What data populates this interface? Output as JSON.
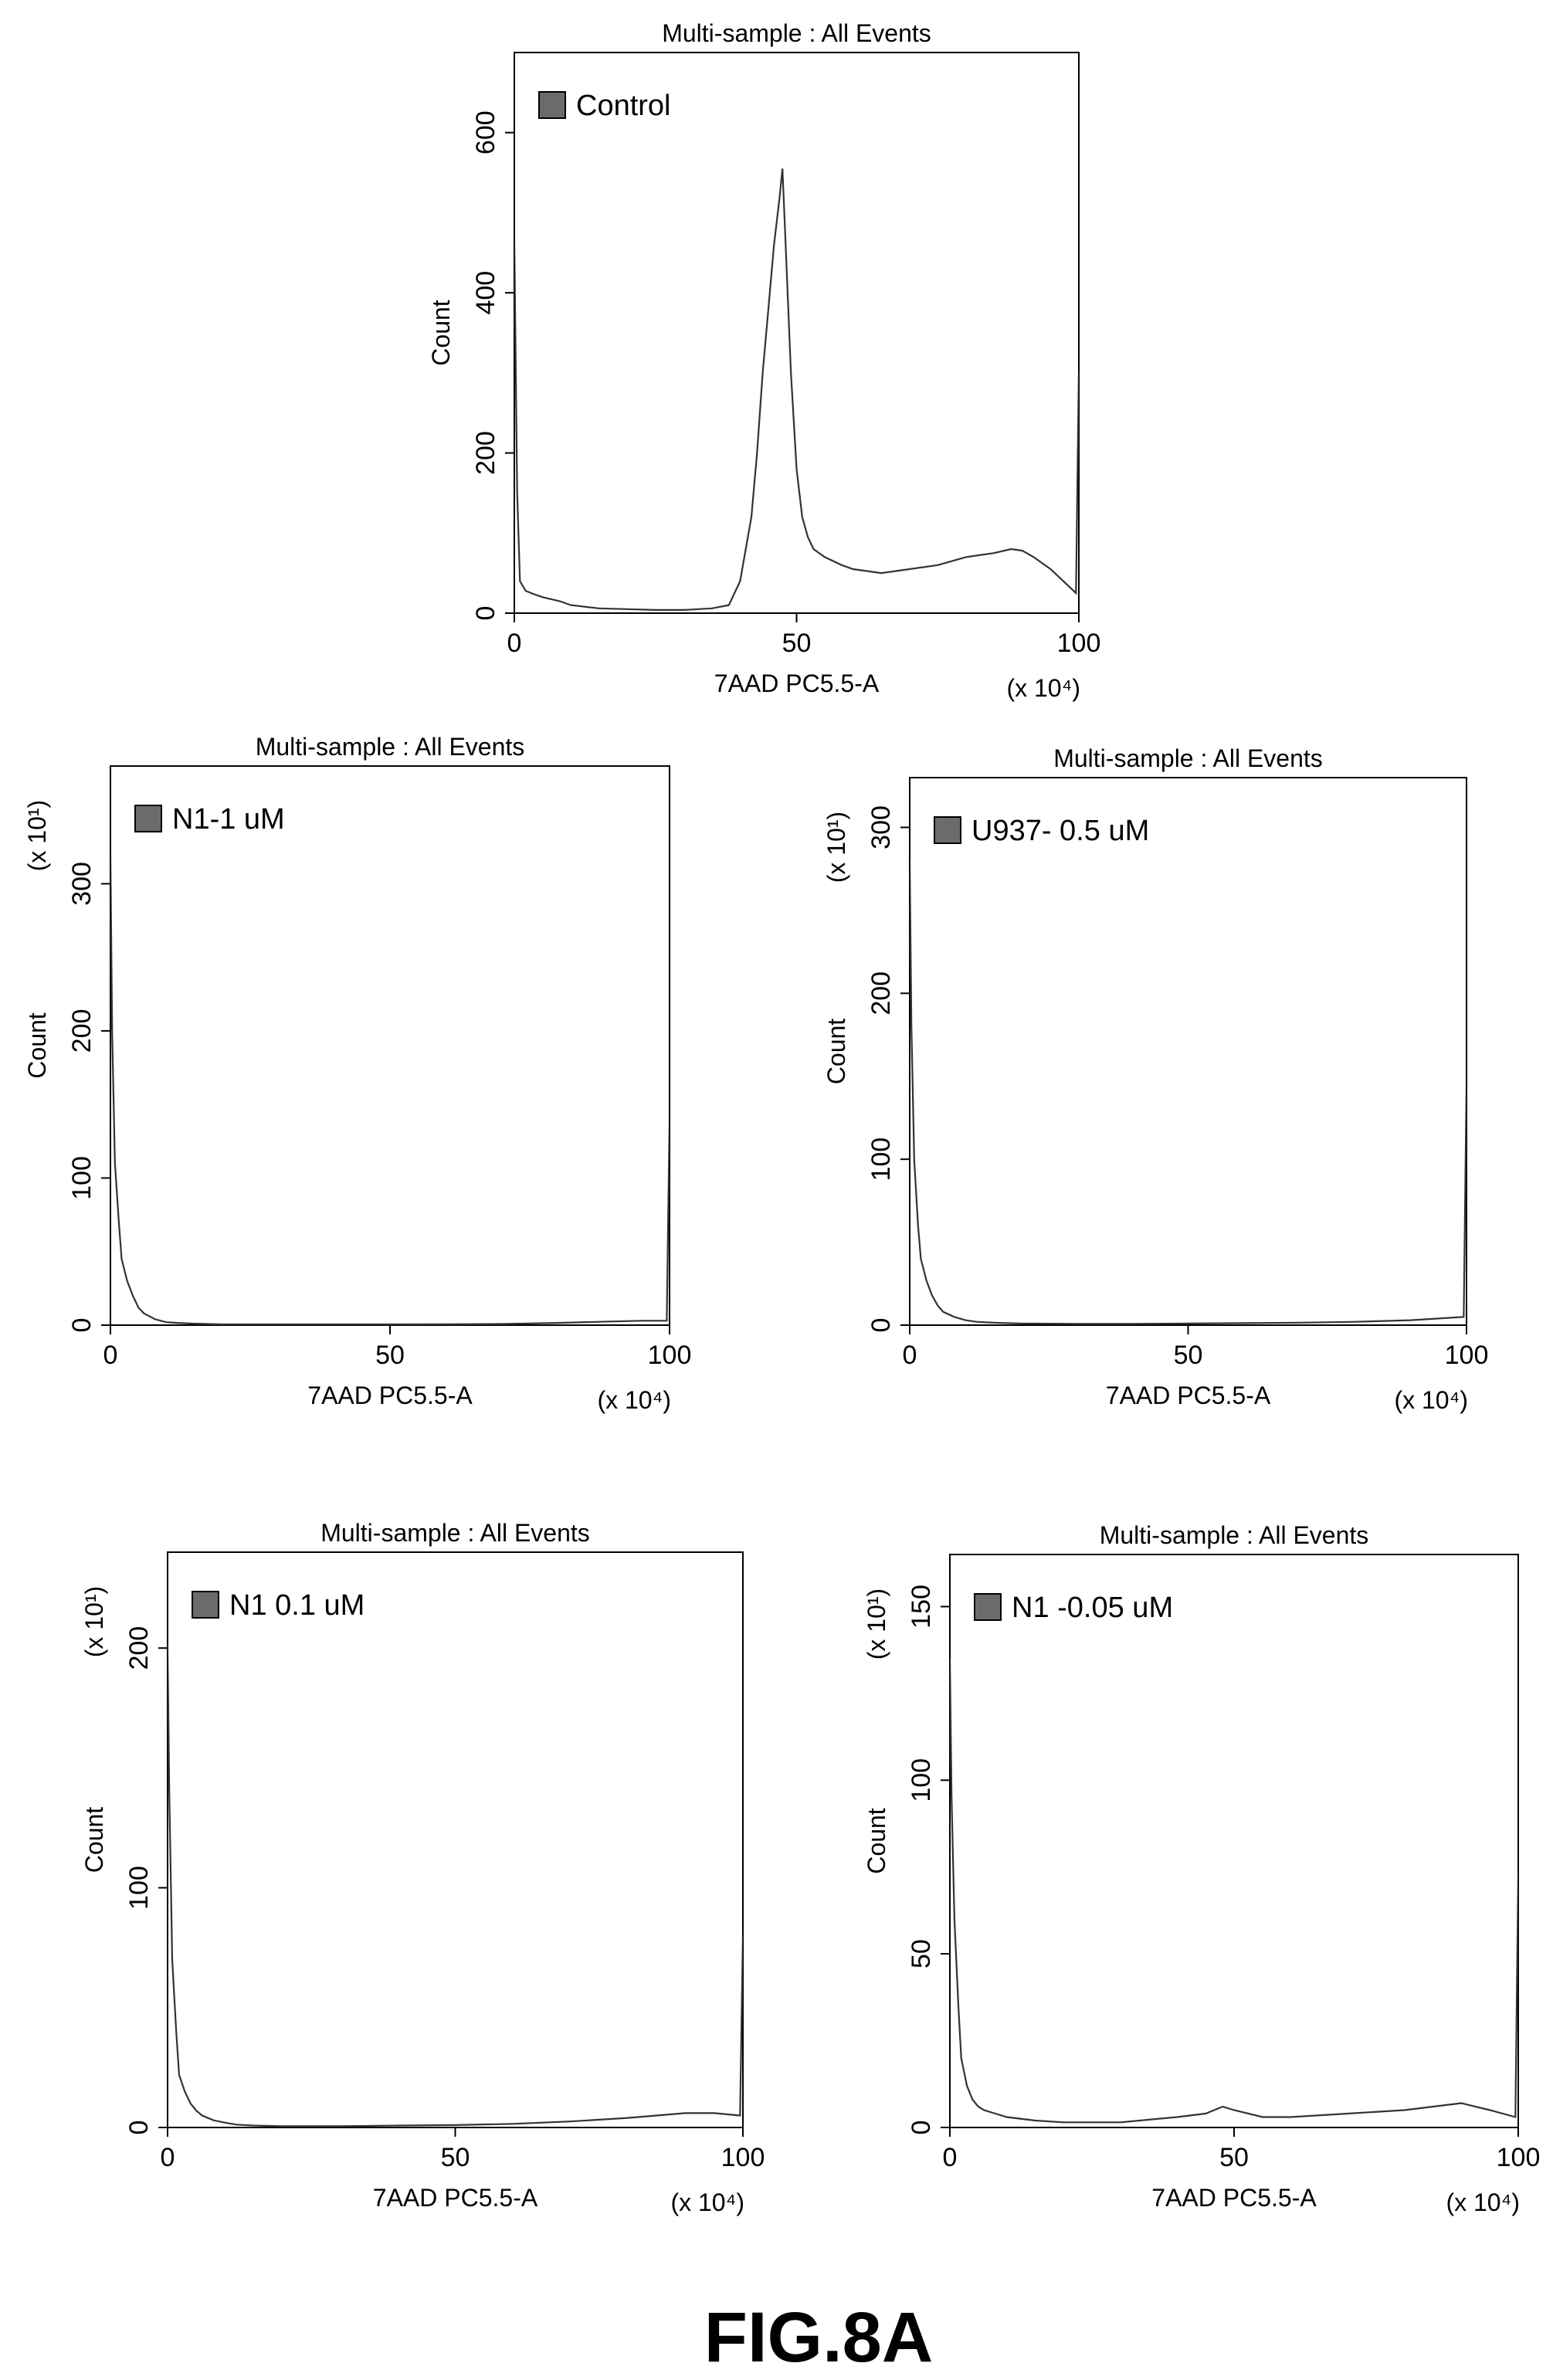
{
  "figure_label": "FIG.8A",
  "chart_data": [
    {
      "type": "area",
      "title": "Multi-sample : All Events",
      "legend": "Control",
      "legend_position": "top-left",
      "xlabel": "7AAD PC5.5-A",
      "x_multiplier": "(x 10⁴)",
      "ylabel": "Count",
      "y_multiplier": "",
      "xlim": [
        0,
        100
      ],
      "ylim": [
        0,
        700
      ],
      "xticks": [
        0,
        50,
        100
      ],
      "yticks": [
        0,
        200,
        400,
        600
      ],
      "grid": false,
      "series": [
        {
          "x": [
            0,
            0.5,
            1,
            2,
            3,
            5,
            8,
            10,
            15,
            20,
            25,
            30,
            35,
            38,
            40,
            42,
            43,
            44,
            45,
            46,
            47,
            47.5,
            48,
            49,
            50,
            51,
            52,
            53,
            55,
            58,
            60,
            65,
            70,
            75,
            80,
            85,
            88,
            90,
            92,
            95,
            98,
            99.5,
            100
          ],
          "y": [
            465,
            150,
            40,
            28,
            25,
            20,
            15,
            10,
            6,
            5,
            4,
            4,
            6,
            10,
            40,
            120,
            200,
            300,
            380,
            460,
            520,
            555,
            470,
            300,
            180,
            120,
            95,
            80,
            70,
            60,
            55,
            50,
            55,
            60,
            70,
            75,
            80,
            78,
            70,
            55,
            35,
            25,
            300
          ]
        }
      ]
    },
    {
      "type": "area",
      "title": "Multi-sample : All Events",
      "legend": "N1-1 uM",
      "legend_position": "top-left",
      "xlabel": "7AAD PC5.5-A",
      "x_multiplier": "(x 10⁴)",
      "ylabel": "Count",
      "y_multiplier": "(x 10¹)",
      "xlim": [
        0,
        100
      ],
      "ylim": [
        0,
        380
      ],
      "xticks": [
        0,
        50,
        100
      ],
      "yticks": [
        0,
        100,
        200,
        300
      ],
      "grid": false,
      "series": [
        {
          "x": [
            0,
            0.3,
            0.8,
            1.5,
            2,
            3,
            4,
            5,
            6,
            8,
            10,
            12,
            15,
            20,
            30,
            40,
            50,
            60,
            70,
            80,
            90,
            95,
            99.5,
            100
          ],
          "y": [
            320,
            200,
            110,
            70,
            45,
            30,
            20,
            12,
            8,
            4,
            2,
            1.5,
            1,
            0.5,
            0.5,
            0.5,
            0.5,
            0.6,
            0.8,
            1.5,
            2.5,
            3,
            3,
            140
          ]
        }
      ]
    },
    {
      "type": "area",
      "title": "Multi-sample : All Events",
      "legend": "U937- 0.5 uM",
      "legend_position": "top-left",
      "xlabel": "7AAD PC5.5-A",
      "x_multiplier": "(x 10⁴)",
      "ylabel": "Count",
      "y_multiplier": "(x 10¹)",
      "xlim": [
        0,
        100
      ],
      "ylim": [
        0,
        330
      ],
      "xticks": [
        0,
        50,
        100
      ],
      "yticks": [
        0,
        100,
        200,
        300
      ],
      "grid": false,
      "series": [
        {
          "x": [
            0,
            0.3,
            0.8,
            1.5,
            2,
            3,
            4,
            5,
            6,
            8,
            10,
            12,
            15,
            20,
            30,
            40,
            50,
            60,
            70,
            80,
            90,
            95,
            99.5,
            100
          ],
          "y": [
            280,
            180,
            100,
            60,
            40,
            27,
            18,
            12,
            8,
            5,
            3,
            2,
            1.5,
            1,
            0.8,
            0.8,
            1,
            1.2,
            1.5,
            2,
            3,
            4,
            5,
            145
          ]
        }
      ]
    },
    {
      "type": "area",
      "title": "Multi-sample : All Events",
      "legend": "N1 0.1 uM",
      "legend_position": "top-left",
      "xlabel": "7AAD PC5.5-A",
      "x_multiplier": "(x 10⁴)",
      "ylabel": "Count",
      "y_multiplier": "(x 10¹)",
      "xlim": [
        0,
        100
      ],
      "ylim": [
        0,
        240
      ],
      "xticks": [
        0,
        50,
        100
      ],
      "yticks": [
        0,
        100,
        200
      ],
      "grid": false,
      "series": [
        {
          "x": [
            0,
            0.3,
            0.8,
            1.5,
            2,
            3,
            4,
            5,
            6,
            8,
            10,
            12,
            15,
            20,
            30,
            40,
            50,
            60,
            70,
            80,
            85,
            90,
            95,
            99.5,
            100
          ],
          "y": [
            200,
            140,
            70,
            40,
            22,
            15,
            10,
            7,
            5,
            3,
            2,
            1.2,
            0.8,
            0.5,
            0.5,
            0.8,
            1,
            1.5,
            2.5,
            4,
            5,
            6,
            6,
            5,
            80
          ]
        }
      ]
    },
    {
      "type": "area",
      "title": "Multi-sample : All Events",
      "legend": "N1 -0.05 uM",
      "legend_position": "top-left",
      "xlabel": "7AAD PC5.5-A",
      "x_multiplier": "(x 10⁴)",
      "ylabel": "Count",
      "y_multiplier": "(x 10¹)",
      "xlim": [
        0,
        100
      ],
      "ylim": [
        0,
        165
      ],
      "xticks": [
        0,
        50,
        100
      ],
      "yticks": [
        0,
        50,
        100,
        150
      ],
      "grid": false,
      "series": [
        {
          "x": [
            0,
            0.3,
            0.8,
            1.5,
            2,
            3,
            4,
            5,
            6,
            8,
            10,
            15,
            20,
            25,
            30,
            40,
            45,
            48,
            50,
            55,
            60,
            70,
            80,
            85,
            90,
            95,
            99.5,
            100
          ],
          "y": [
            135,
            95,
            60,
            35,
            20,
            12,
            8,
            6,
            5,
            4,
            3,
            2,
            1.5,
            1.5,
            1.5,
            3,
            4,
            6,
            5,
            3,
            3,
            4,
            5,
            6,
            7,
            5,
            3,
            73
          ]
        }
      ]
    }
  ]
}
